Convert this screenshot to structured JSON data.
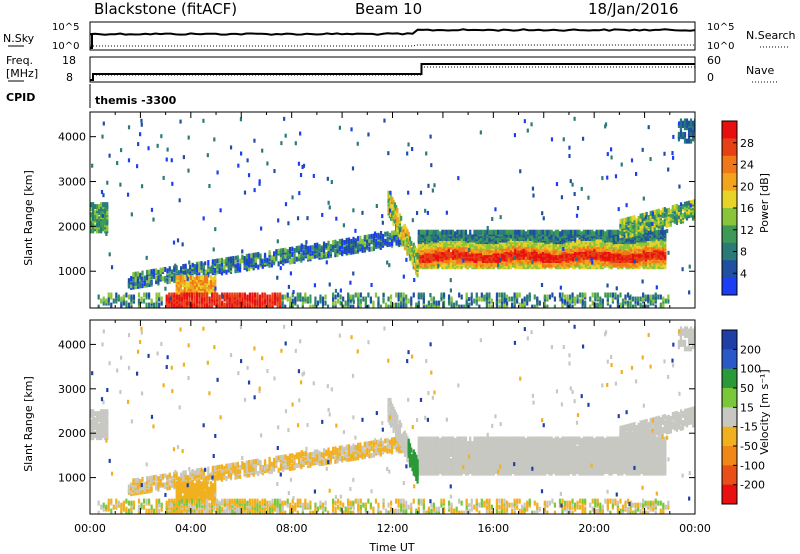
{
  "header": {
    "station": "Blackstone (fitACF)",
    "beam": "Beam 10",
    "date": "18/Jan/2016"
  },
  "panels": {
    "nsky_label": "N.Sky",
    "nsky_ticks": [
      "10^5",
      "10^0"
    ],
    "nsearch_label": "N.Search",
    "nsearch_ticks": [
      "10^5",
      "10^0"
    ],
    "freq_label": "Freq.",
    "freq_unit": "[MHz]",
    "freq_ticks": [
      "18",
      "8"
    ],
    "nave_label": "Nave",
    "nave_ticks": [
      "60",
      "0"
    ],
    "cpid_label": "CPID",
    "cpid_value": "themis -3300"
  },
  "chart_data": [
    {
      "type": "heatmap",
      "name": "power",
      "ylabel": "Slant Range [km]",
      "xlabel": "",
      "xlim_hours": [
        0,
        24
      ],
      "x_ticks": [
        "00:00",
        "04:00",
        "08:00",
        "12:00",
        "16:00",
        "20:00",
        "00:00"
      ],
      "ylim": [
        180,
        4550
      ],
      "y_ticks": [
        1000,
        2000,
        3000,
        4000
      ],
      "colorbar": {
        "label": "Power [dB]",
        "ticks": [
          4,
          8,
          12,
          16,
          20,
          24,
          28
        ],
        "colors": [
          "#1b3ef5",
          "#1f4fa0",
          "#2a7a78",
          "#3d9a56",
          "#8ac43a",
          "#e7d32a",
          "#f2a41e",
          "#f07818",
          "#e64014",
          "#e8100f"
        ]
      },
      "features": [
        {
          "feature": "main_backscatter_band",
          "t_start": 13.0,
          "t_end": 22.8,
          "range_km": [
            1150,
            1750
          ],
          "peak_power_db": 26
        },
        {
          "feature": "near_range_echoes",
          "t_start": 3.0,
          "t_end": 7.5,
          "range_km": [
            200,
            450
          ],
          "peak_power_db": 30
        },
        {
          "feature": "rising_band_morning",
          "t_start": 1.0,
          "t_end": 12.5,
          "range_km": [
            700,
            2300
          ],
          "peak_power_db": 12
        }
      ]
    },
    {
      "type": "heatmap",
      "name": "velocity",
      "ylabel": "Slant Range [km]",
      "xlabel": "Time UT",
      "xlim_hours": [
        0,
        24
      ],
      "x_ticks": [
        "00:00",
        "04:00",
        "08:00",
        "12:00",
        "16:00",
        "20:00",
        "00:00"
      ],
      "ylim": [
        180,
        4550
      ],
      "y_ticks": [
        1000,
        2000,
        3000,
        4000
      ],
      "colorbar": {
        "label": "Velocity [m s⁻¹]",
        "ticks": [
          "200",
          "100",
          "50",
          "15",
          "-15",
          "-50",
          "-100",
          "-200"
        ],
        "colors": [
          "#1f3fa8",
          "#2a58c8",
          "#2a9a38",
          "#7ac83a",
          "#c8c8c2",
          "#f0b020",
          "#f08818",
          "#e85018",
          "#e81010"
        ]
      },
      "features": [
        {
          "feature": "ground_scatter_band",
          "t_start": 13.0,
          "t_end": 22.8,
          "range_km": [
            1150,
            1750
          ],
          "velocity_ms": 0
        },
        {
          "feature": "negative_velocity_band",
          "t_start": 1.0,
          "t_end": 11.0,
          "range_km": [
            700,
            1800
          ],
          "velocity_ms": -40
        }
      ]
    }
  ]
}
